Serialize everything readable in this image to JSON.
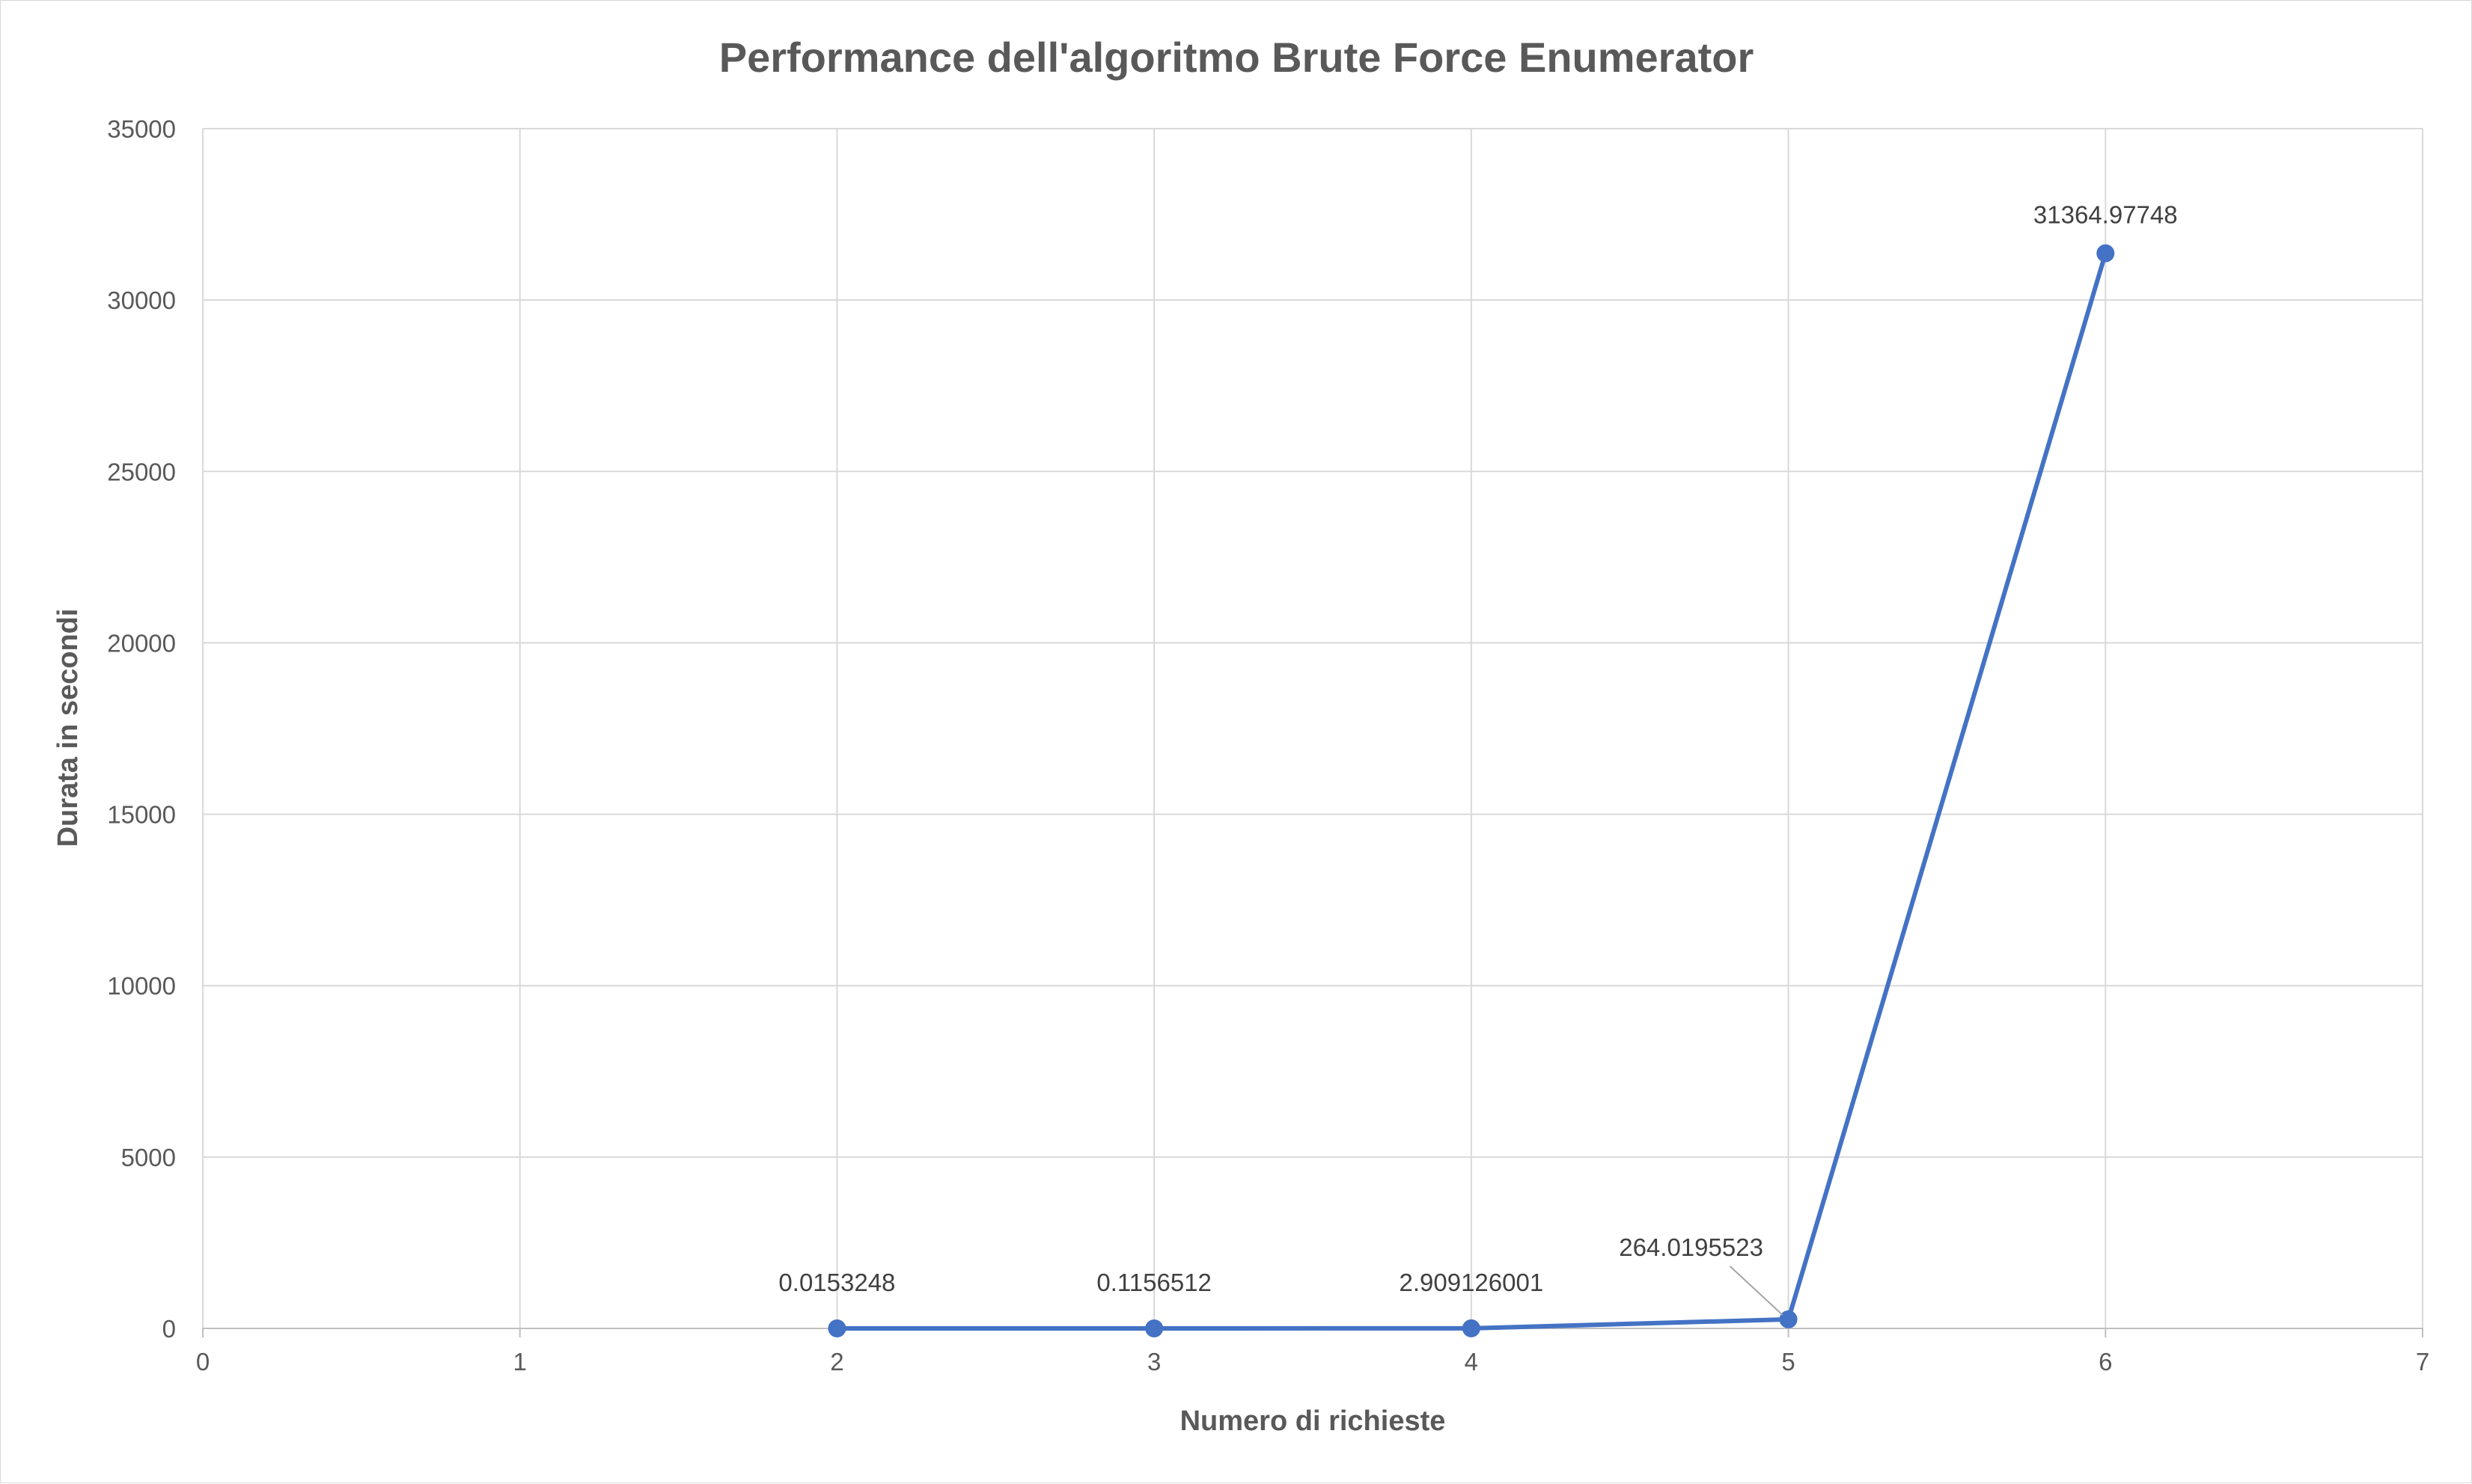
{
  "chart_data": {
    "type": "scatter",
    "title": "Performance dell'algoritmo Brute Force Enumerator",
    "xlabel": "Numero di richieste",
    "ylabel": "Durata in secondi",
    "xlim": [
      0,
      7
    ],
    "ylim": [
      0,
      35000
    ],
    "x_ticks": [
      0,
      1,
      2,
      3,
      4,
      5,
      6,
      7
    ],
    "y_ticks": [
      0,
      5000,
      10000,
      15000,
      20000,
      25000,
      30000,
      35000
    ],
    "grid": true,
    "legend": "none",
    "lines": true,
    "markers": true,
    "series_color": "#4472c4",
    "series": [
      {
        "points": [
          {
            "x": 2,
            "y": 0.0153248,
            "label": "0.0153248"
          },
          {
            "x": 3,
            "y": 0.1156512,
            "label": "0.1156512"
          },
          {
            "x": 4,
            "y": 2.909126001,
            "label": "2.909126001"
          },
          {
            "x": 5,
            "y": 264.0195523,
            "label": "264.0195523"
          },
          {
            "x": 6,
            "y": 31364.97748,
            "label": "31364.97748"
          }
        ]
      }
    ]
  }
}
